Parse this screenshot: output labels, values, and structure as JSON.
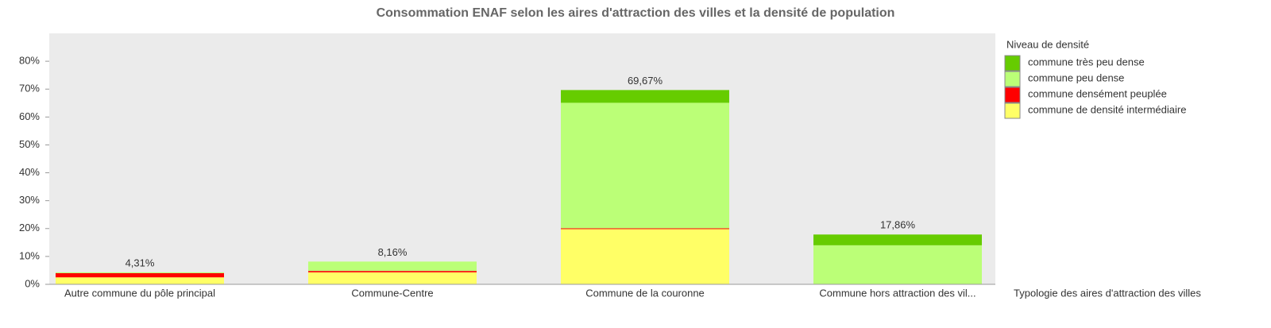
{
  "chart_data": {
    "type": "stacked_bar",
    "title": "Consommation ENAF selon les aires d'attraction des villes et la densité de population",
    "x_label": "Typologie des aires d'attraction des villes",
    "legend_title": "Niveau de densité",
    "categories": [
      "Autre commune du pôle principal",
      "Commune-Centre",
      "Commune de la couronne",
      "Commune hors attraction des vil..."
    ],
    "series": [
      {
        "name": "commune de densité intermédiaire",
        "color": "#ffff66",
        "values": [
          2.5,
          4.3,
          19.8,
          0
        ]
      },
      {
        "name": "commune densément peuplée",
        "color": "#ff0000",
        "values": [
          1.5,
          0.5,
          0.3,
          0
        ]
      },
      {
        "name": "commune peu dense",
        "color": "#bbff77",
        "values": [
          0.31,
          3.36,
          45.0,
          14.0
        ]
      },
      {
        "name": "commune très peu dense",
        "color": "#66cc00",
        "values": [
          0,
          0,
          4.57,
          3.86
        ]
      }
    ],
    "totals": [
      4.31,
      8.16,
      69.67,
      17.86
    ],
    "total_labels": [
      "4,31%",
      "8,16%",
      "69,67%",
      "17,86%"
    ],
    "ylim": [
      0,
      90
    ],
    "yticks": [
      {
        "value": 0,
        "label": "0%"
      },
      {
        "value": 10,
        "label": "10%"
      },
      {
        "value": 20,
        "label": "20%"
      },
      {
        "value": 30,
        "label": "30%"
      },
      {
        "value": 40,
        "label": "40%"
      },
      {
        "value": 50,
        "label": "50%"
      },
      {
        "value": 60,
        "label": "60%"
      },
      {
        "value": 70,
        "label": "70%"
      },
      {
        "value": 80,
        "label": "80%"
      }
    ],
    "plot_background": "#ebebeb"
  }
}
